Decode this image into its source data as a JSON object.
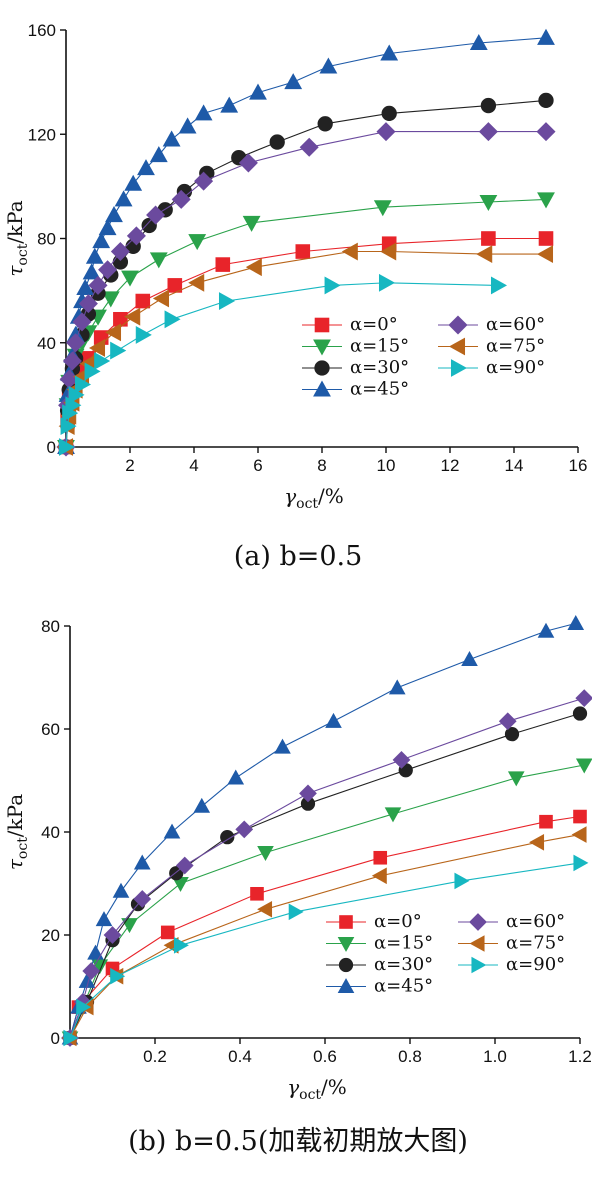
{
  "chart_data": [
    {
      "type": "line",
      "panel": "a",
      "caption": "(a) b=0.5",
      "xlabel": "γoct/%",
      "ylabel": "τoct/kPa",
      "xlim": [
        0,
        16
      ],
      "ylim": [
        0,
        160
      ],
      "xticks": [
        "2",
        "4",
        "6",
        "8",
        "10",
        "12",
        "14",
        "16"
      ],
      "yticks": [
        "0",
        "40",
        "80",
        "120",
        "160"
      ],
      "grid": false,
      "legend_placement": "bottom-right",
      "series": [
        {
          "name": "α=0°",
          "color": "#e8242a",
          "marker": "square",
          "points": [
            [
              0,
              0
            ],
            [
              0.05,
              10
            ],
            [
              0.1,
              19
            ],
            [
              0.2,
              24
            ],
            [
              0.3,
              28
            ],
            [
              0.5,
              31
            ],
            [
              0.7,
              34
            ],
            [
              1.1,
              42
            ],
            [
              1.7,
              49
            ],
            [
              2.4,
              56
            ],
            [
              3.4,
              62
            ],
            [
              4.9,
              70
            ],
            [
              7.4,
              75
            ],
            [
              10.1,
              78
            ],
            [
              13.2,
              80
            ],
            [
              15,
              80
            ]
          ]
        },
        {
          "name": "α=15°",
          "color": "#2aa24a",
          "marker": "triangle-down",
          "points": [
            [
              0,
              0
            ],
            [
              0.05,
              16
            ],
            [
              0.1,
              25
            ],
            [
              0.2,
              31
            ],
            [
              0.3,
              35
            ],
            [
              0.5,
              40
            ],
            [
              0.7,
              44
            ],
            [
              1,
              50
            ],
            [
              1.4,
              57
            ],
            [
              2,
              65
            ],
            [
              2.9,
              72
            ],
            [
              4.1,
              79
            ],
            [
              5.8,
              86
            ],
            [
              9.9,
              92
            ],
            [
              13.2,
              94
            ],
            [
              15,
              95
            ]
          ]
        },
        {
          "name": "α=30°",
          "color": "#222222",
          "marker": "circle",
          "points": [
            [
              0,
              0
            ],
            [
              0.05,
              14
            ],
            [
              0.1,
              22
            ],
            [
              0.2,
              30
            ],
            [
              0.3,
              34
            ],
            [
              0.5,
              43
            ],
            [
              0.7,
              51
            ],
            [
              1,
              59
            ],
            [
              1.4,
              66
            ],
            [
              1.7,
              71
            ],
            [
              2.1,
              77
            ],
            [
              2.6,
              85
            ],
            [
              3.1,
              91
            ],
            [
              3.7,
              98
            ],
            [
              4.4,
              105
            ],
            [
              5.4,
              111
            ],
            [
              6.6,
              117
            ],
            [
              8.1,
              124
            ],
            [
              10.1,
              128
            ],
            [
              13.2,
              131
            ],
            [
              15,
              133
            ]
          ]
        },
        {
          "name": "α=45°",
          "color": "#1e5aa8",
          "marker": "triangle-up",
          "points": [
            [
              0,
              0
            ],
            [
              0.05,
              20
            ],
            [
              0.1,
              28
            ],
            [
              0.2,
              35
            ],
            [
              0.3,
              43
            ],
            [
              0.4,
              50
            ],
            [
              0.5,
              56
            ],
            [
              0.6,
              61
            ],
            [
              0.8,
              67
            ],
            [
              0.9,
              73
            ],
            [
              1.1,
              79
            ],
            [
              1.3,
              84
            ],
            [
              1.5,
              89
            ],
            [
              1.8,
              95
            ],
            [
              2.1,
              101
            ],
            [
              2.5,
              107
            ],
            [
              2.9,
              112
            ],
            [
              3.3,
              118
            ],
            [
              3.8,
              123
            ],
            [
              4.3,
              128
            ],
            [
              5.1,
              131
            ],
            [
              6,
              136
            ],
            [
              7.1,
              140
            ],
            [
              8.2,
              146
            ],
            [
              10.1,
              151
            ],
            [
              12.9,
              155
            ],
            [
              15,
              157
            ]
          ]
        },
        {
          "name": "α=60°",
          "color": "#6b4a9e",
          "marker": "diamond",
          "points": [
            [
              0,
              0
            ],
            [
              0.05,
              16
            ],
            [
              0.1,
              26
            ],
            [
              0.2,
              33
            ],
            [
              0.3,
              40
            ],
            [
              0.5,
              48
            ],
            [
              0.7,
              55
            ],
            [
              1,
              62
            ],
            [
              1.3,
              68
            ],
            [
              1.7,
              75
            ],
            [
              2.2,
              81
            ],
            [
              2.8,
              89
            ],
            [
              3.6,
              95
            ],
            [
              4.3,
              102
            ],
            [
              5.7,
              109
            ],
            [
              7.6,
              115
            ],
            [
              10,
              121
            ],
            [
              13.2,
              121
            ],
            [
              15,
              121
            ]
          ]
        },
        {
          "name": "α=75°",
          "color": "#b8651a",
          "marker": "triangle-left",
          "points": [
            [
              0,
              0
            ],
            [
              0.05,
              8
            ],
            [
              0.1,
              12
            ],
            [
              0.2,
              17
            ],
            [
              0.3,
              22
            ],
            [
              0.5,
              27
            ],
            [
              0.7,
              32
            ],
            [
              1,
              38
            ],
            [
              1.5,
              44
            ],
            [
              2.1,
              50
            ],
            [
              3,
              57
            ],
            [
              4.1,
              63
            ],
            [
              5.9,
              69
            ],
            [
              8.9,
              75
            ],
            [
              10.1,
              75
            ],
            [
              13.1,
              74
            ],
            [
              15,
              74
            ]
          ]
        },
        {
          "name": "α=90°",
          "color": "#17b7c1",
          "marker": "triangle-right",
          "points": [
            [
              0,
              0
            ],
            [
              0.05,
              8
            ],
            [
              0.1,
              13
            ],
            [
              0.2,
              16
            ],
            [
              0.3,
              20
            ],
            [
              0.5,
              24
            ],
            [
              0.8,
              29
            ],
            [
              1.1,
              33
            ],
            [
              1.6,
              37
            ],
            [
              2.4,
              43
            ],
            [
              3.3,
              49
            ],
            [
              5,
              56
            ],
            [
              8.3,
              62
            ],
            [
              10,
              63
            ],
            [
              13.5,
              62
            ]
          ]
        }
      ]
    },
    {
      "type": "line",
      "panel": "b",
      "caption": "(b) b=0.5(加载初期放大图)",
      "xlabel": "γoct/%",
      "ylabel": "τoct/kPa",
      "xlim": [
        0,
        1.2
      ],
      "ylim": [
        0,
        80
      ],
      "xticks": [
        "0.2",
        "0.4",
        "0.6",
        "0.8",
        "1.0",
        "1.2"
      ],
      "yticks": [
        "0",
        "20",
        "40",
        "60",
        "80"
      ],
      "grid": false,
      "legend_placement": "bottom-right",
      "series": [
        {
          "name": "α=0°",
          "color": "#e8242a",
          "marker": "square",
          "points": [
            [
              0,
              0
            ],
            [
              0.02,
              6
            ],
            [
              0.1,
              13.5
            ],
            [
              0.23,
              20.5
            ],
            [
              0.44,
              28
            ],
            [
              0.73,
              35
            ],
            [
              1.12,
              42
            ],
            [
              1.2,
              43
            ]
          ]
        },
        {
          "name": "α=15°",
          "color": "#2aa24a",
          "marker": "triangle-down",
          "points": [
            [
              0,
              0
            ],
            [
              0.03,
              6
            ],
            [
              0.07,
              14
            ],
            [
              0.14,
              22
            ],
            [
              0.26,
              30
            ],
            [
              0.46,
              36
            ],
            [
              0.76,
              43.5
            ],
            [
              1.05,
              50.5
            ],
            [
              1.21,
              53
            ]
          ]
        },
        {
          "name": "α=30°",
          "color": "#222222",
          "marker": "circle",
          "points": [
            [
              0,
              0
            ],
            [
              0.04,
              7
            ],
            [
              0.1,
              19
            ],
            [
              0.16,
              26
            ],
            [
              0.25,
              32
            ],
            [
              0.37,
              39
            ],
            [
              0.56,
              45.5
            ],
            [
              0.79,
              52
            ],
            [
              1.04,
              59
            ],
            [
              1.2,
              63
            ]
          ]
        },
        {
          "name": "α=45°",
          "color": "#1e5aa8",
          "marker": "triangle-up",
          "points": [
            [
              0,
              0
            ],
            [
              0.02,
              6
            ],
            [
              0.04,
              11
            ],
            [
              0.06,
              16.5
            ],
            [
              0.08,
              23
            ],
            [
              0.12,
              28.5
            ],
            [
              0.17,
              34
            ],
            [
              0.24,
              40
            ],
            [
              0.31,
              45
            ],
            [
              0.39,
              50.5
            ],
            [
              0.5,
              56.5
            ],
            [
              0.62,
              61.5
            ],
            [
              0.77,
              68
            ],
            [
              0.94,
              73.5
            ],
            [
              1.12,
              79
            ],
            [
              1.19,
              80.5
            ]
          ]
        },
        {
          "name": "α=60°",
          "color": "#6b4a9e",
          "marker": "diamond",
          "points": [
            [
              0,
              0
            ],
            [
              0.03,
              7
            ],
            [
              0.05,
              13
            ],
            [
              0.1,
              20
            ],
            [
              0.17,
              27
            ],
            [
              0.27,
              33.5
            ],
            [
              0.41,
              40.5
            ],
            [
              0.56,
              47.5
            ],
            [
              0.78,
              54
            ],
            [
              1.03,
              61.5
            ],
            [
              1.21,
              66
            ]
          ]
        },
        {
          "name": "α=75°",
          "color": "#b8651a",
          "marker": "triangle-left",
          "points": [
            [
              0,
              0
            ],
            [
              0.04,
              6
            ],
            [
              0.11,
              12
            ],
            [
              0.24,
              18
            ],
            [
              0.46,
              25
            ],
            [
              0.73,
              31.5
            ],
            [
              1.1,
              38
            ],
            [
              1.2,
              39.5
            ]
          ]
        },
        {
          "name": "α=90°",
          "color": "#17b7c1",
          "marker": "triangle-right",
          "points": [
            [
              0,
              0
            ],
            [
              0.03,
              6
            ],
            [
              0.11,
              12
            ],
            [
              0.26,
              18
            ],
            [
              0.53,
              24.5
            ],
            [
              0.92,
              30.5
            ],
            [
              1.2,
              34
            ]
          ]
        }
      ]
    }
  ]
}
